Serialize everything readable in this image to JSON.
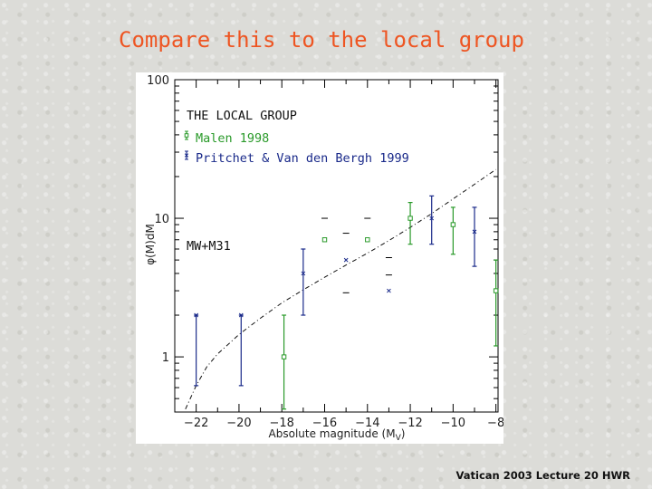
{
  "slide": {
    "title": "Compare this to the local group",
    "footer": "Vatican 2003 Lecture 20 HWR"
  },
  "colors": {
    "malen": "#2a9a2a",
    "pritchet": "#1a2a8a",
    "curve": "#111111"
  },
  "chart_data": {
    "type": "scatter",
    "title": "THE LOCAL GROUP",
    "subtitle": "MW+M31",
    "xlabel": "Absolute magnitude (M",
    "xlabel_sub": "V",
    "xlabel_close": ")",
    "ylabel": "φ(M)dM",
    "xlim": [
      -23,
      -7.9
    ],
    "ylim": [
      0.4,
      100
    ],
    "yscale": "log",
    "x_ticks": [
      -22,
      -20,
      -18,
      -16,
      -14,
      -12,
      -10,
      -8
    ],
    "x_tick_labels": [
      "−22",
      "−20",
      "−18",
      "−16",
      "−14",
      "−12",
      "−10",
      "−8"
    ],
    "y_ticks": [
      1,
      10,
      100
    ],
    "y_tick_labels": [
      "1",
      "10",
      "100"
    ],
    "legend": [
      {
        "label": "Malen 1998",
        "series": "malen"
      },
      {
        "label": "Pritchet & Van den Bergh 1999",
        "series": "pritchet"
      }
    ],
    "series": [
      {
        "name": "Malen 1998",
        "key": "malen",
        "marker": "square",
        "points": [
          {
            "x": -17.9,
            "y": 1.0,
            "lo": 0.42,
            "hi": 2.0
          },
          {
            "x": -16.0,
            "y": 7.0
          },
          {
            "x": -14.0,
            "y": 7.0
          },
          {
            "x": -12.0,
            "y": 10.0,
            "lo": 6.5,
            "hi": 13.0
          },
          {
            "x": -10.0,
            "y": 9.0,
            "lo": 5.5,
            "hi": 12.0
          },
          {
            "x": -8.0,
            "y": 3.0,
            "lo": 1.2,
            "hi": 5.0
          }
        ]
      },
      {
        "name": "Pritchet & Van den Bergh 1999",
        "key": "pritchet",
        "marker": "cross",
        "points": [
          {
            "x": -22.0,
            "y": 2.0,
            "lo": 0.62,
            "hi": 2.0
          },
          {
            "x": -19.9,
            "y": 2.0,
            "lo": 0.62,
            "hi": 2.0
          },
          {
            "x": -17.0,
            "y": 4.0,
            "lo": 2.0,
            "hi": 6.0
          },
          {
            "x": -15.0,
            "y": 5.0
          },
          {
            "x": -13.0,
            "y": 3.0
          },
          {
            "x": -11.0,
            "y": 10.0,
            "lo": 6.5,
            "hi": 14.5
          },
          {
            "x": -9.0,
            "y": 8.0,
            "lo": 4.5,
            "hi": 12.0
          }
        ]
      }
    ],
    "upper_limits": [
      {
        "x": -16.0,
        "y": 10.0
      },
      {
        "x": -15.0,
        "y": 7.8
      },
      {
        "x": -14.0,
        "y": 10.0
      },
      {
        "x": -13.0,
        "y": 5.2
      },
      {
        "x": -15.0,
        "y": 2.9
      },
      {
        "x": -13.0,
        "y": 3.9
      }
    ],
    "schechter_curve": [
      {
        "x": -22.5,
        "y": 0.42
      },
      {
        "x": -22.0,
        "y": 0.62
      },
      {
        "x": -21.5,
        "y": 0.85
      },
      {
        "x": -21.0,
        "y": 1.05
      },
      {
        "x": -20.0,
        "y": 1.45
      },
      {
        "x": -19.0,
        "y": 1.9
      },
      {
        "x": -18.0,
        "y": 2.45
      },
      {
        "x": -17.0,
        "y": 3.05
      },
      {
        "x": -16.0,
        "y": 3.75
      },
      {
        "x": -15.0,
        "y": 4.6
      },
      {
        "x": -14.0,
        "y": 5.6
      },
      {
        "x": -13.0,
        "y": 6.9
      },
      {
        "x": -12.0,
        "y": 8.6
      },
      {
        "x": -11.0,
        "y": 10.8
      },
      {
        "x": -10.0,
        "y": 13.8
      },
      {
        "x": -9.0,
        "y": 17.6
      },
      {
        "x": -8.0,
        "y": 22.5
      }
    ]
  }
}
